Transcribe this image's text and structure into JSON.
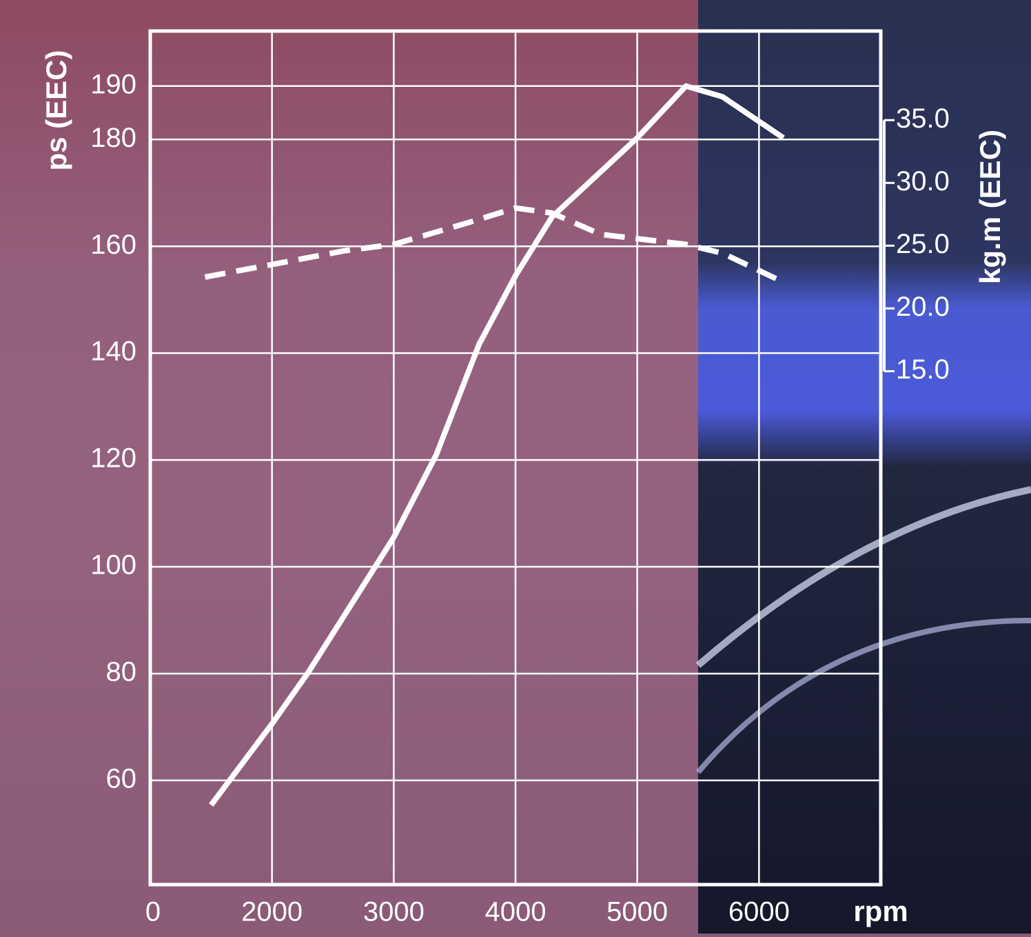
{
  "chart_data": {
    "type": "line",
    "y_axis_label": "ps (EEC)",
    "y2_axis_label": "kg.m (EEC)",
    "x_axis_label": "rpm",
    "x_axis_start_label": "0",
    "xlim": [
      1000,
      7000
    ],
    "xticks": [
      2000,
      3000,
      4000,
      5000,
      6000
    ],
    "ylim": [
      40.5,
      200.3
    ],
    "yticks": [
      60,
      80,
      100,
      120,
      140,
      160,
      180,
      190
    ],
    "y2lim": [
      -25.9,
      42.1
    ],
    "y2ticks": [
      {
        "value": 15,
        "label": "15.0"
      },
      {
        "value": 20,
        "label": "20.0"
      },
      {
        "value": 25,
        "label": "25.0"
      },
      {
        "value": 30,
        "label": "30.0"
      },
      {
        "value": 35,
        "label": "35.0"
      }
    ],
    "grid": true,
    "series": [
      {
        "name": "ps",
        "color": "#ffffff",
        "dashed": false,
        "x": [
          1500,
          2000,
          2300,
          3000,
          3350,
          3700,
          4000,
          4300,
          5000,
          5400,
          5700,
          6200
        ],
        "values": [
          55.4,
          70.6,
          80.3,
          105.5,
          121,
          141.6,
          154.5,
          165.5,
          180.3,
          190,
          188,
          180.3
        ]
      },
      {
        "name": "kg.m",
        "color": "#ffffff",
        "dashed": true,
        "axis": "y2",
        "x": [
          1450,
          2000,
          2600,
          3000,
          3600,
          4000,
          4300,
          4700,
          5400,
          5700,
          6200
        ],
        "values": [
          22.5,
          23.5,
          24.6,
          25.1,
          26.8,
          28.0,
          27.6,
          25.9,
          25.1,
          24.4,
          22.1
        ]
      }
    ]
  }
}
